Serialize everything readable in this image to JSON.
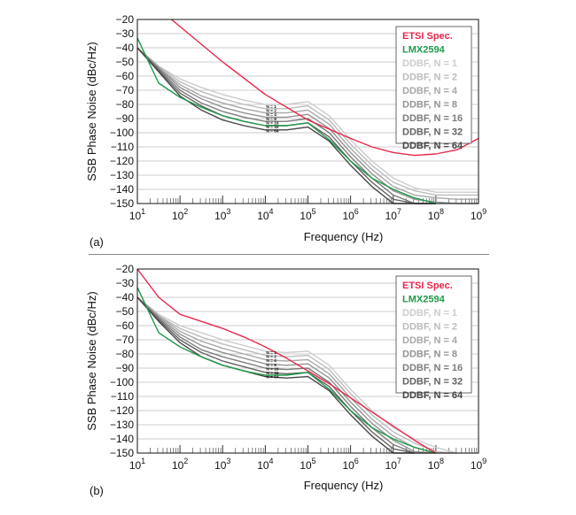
{
  "panels": [
    {
      "label": "(a)"
    },
    {
      "label": "(b)"
    }
  ],
  "colors": {
    "etsi": "#e8274b",
    "lmx": "#1f9a4a",
    "ddbf": [
      "#cccccc",
      "#bcbcbc",
      "#a8a8a8",
      "#939393",
      "#7c7c7c",
      "#626262",
      "#454545"
    ],
    "grid": "#bdbdbd",
    "axis": "#111111"
  },
  "chart_data": [
    {
      "type": "line",
      "panel": "(a)",
      "xlabel": "Frequency (Hz)",
      "ylabel": "SSB Phase Noise (dBc/Hz)",
      "xscale": "log",
      "xlim_exp": [
        1,
        9
      ],
      "ylim": [
        -150,
        -20
      ],
      "yticks": [
        -20,
        -30,
        -40,
        -50,
        -60,
        -70,
        -80,
        -90,
        -100,
        -110,
        -120,
        -130,
        -140,
        -150
      ],
      "grid": "on",
      "legend_position": "top-right",
      "annotation_labels": [
        "N = 1",
        "N = 2",
        "N = 4",
        "N = 8",
        "N = 16",
        "N = 32",
        "N = 64"
      ],
      "series": [
        {
          "name": "ETSI Spec.",
          "color_key": "etsi",
          "x_exp": [
            1.8,
            3,
            4,
            5,
            6,
            6.5,
            7,
            7.5,
            8,
            8.5,
            9
          ],
          "y": [
            -20,
            -50,
            -73,
            -91,
            -104,
            -110,
            -114,
            -116,
            -115,
            -112,
            -104
          ]
        },
        {
          "name": "LMX2594",
          "color_key": "lmx",
          "x_exp": [
            1,
            1.5,
            2,
            2.5,
            3,
            3.5,
            4,
            4.5,
            5,
            5.5,
            6,
            6.5,
            7,
            7.5,
            8
          ],
          "y": [
            -33,
            -65,
            -75,
            -82,
            -88,
            -92,
            -95,
            -95,
            -93,
            -105,
            -120,
            -132,
            -140,
            -146,
            -150
          ]
        },
        {
          "name": "DDBF, N = 1",
          "color_key": "ddbf.0",
          "x_exp": [
            1,
            1.5,
            2,
            2.5,
            3,
            3.5,
            4,
            4.5,
            5,
            5.5,
            6,
            6.5,
            7,
            7.5,
            8,
            8.5,
            9
          ],
          "y": [
            -40,
            -53,
            -62,
            -68,
            -73,
            -77,
            -80,
            -80,
            -78,
            -88,
            -105,
            -120,
            -132,
            -139,
            -142,
            -142,
            -142
          ]
        },
        {
          "name": "DDBF, N = 2",
          "color_key": "ddbf.1",
          "x_exp": [
            1,
            1.5,
            2,
            2.5,
            3,
            3.5,
            4,
            4.5,
            5,
            5.5,
            6,
            6.5,
            7,
            7.5,
            8,
            8.5,
            9
          ],
          "y": [
            -40,
            -53,
            -64,
            -71,
            -76,
            -80,
            -83,
            -83,
            -81,
            -91,
            -108,
            -123,
            -135,
            -141,
            -144,
            -144,
            -144
          ]
        },
        {
          "name": "DDBF, N = 4",
          "color_key": "ddbf.2",
          "x_exp": [
            1,
            1.5,
            2,
            2.5,
            3,
            3.5,
            4,
            4.5,
            5,
            5.5,
            6,
            6.5,
            7,
            7.5,
            8,
            8.5,
            9
          ],
          "y": [
            -40,
            -54,
            -66,
            -74,
            -79,
            -83,
            -86,
            -86,
            -84,
            -94,
            -111,
            -126,
            -138,
            -144,
            -146,
            -147,
            -147
          ]
        },
        {
          "name": "DDBF, N = 8",
          "color_key": "ddbf.3",
          "x_exp": [
            1,
            1.5,
            2,
            2.5,
            3,
            3.5,
            4,
            4.5,
            5,
            5.5,
            6,
            6.5,
            7,
            7.5,
            8,
            8.5,
            9
          ],
          "y": [
            -40,
            -54,
            -68,
            -76,
            -82,
            -86,
            -89,
            -89,
            -87,
            -97,
            -114,
            -129,
            -141,
            -147,
            -149,
            -150,
            -150
          ]
        },
        {
          "name": "DDBF, N = 16",
          "color_key": "ddbf.4",
          "x_exp": [
            1,
            1.5,
            2,
            2.5,
            3,
            3.5,
            4,
            4.5,
            5,
            5.5,
            6,
            6.5,
            7,
            7.5,
            8
          ],
          "y": [
            -40,
            -55,
            -70,
            -79,
            -85,
            -89,
            -92,
            -92,
            -90,
            -100,
            -117,
            -132,
            -144,
            -150,
            -150
          ]
        },
        {
          "name": "DDBF, N = 32",
          "color_key": "ddbf.5",
          "x_exp": [
            1,
            1.5,
            2,
            2.5,
            3,
            3.5,
            4,
            4.5,
            5,
            5.5,
            6,
            6.5,
            7,
            7.5,
            8
          ],
          "y": [
            -40,
            -56,
            -72,
            -81,
            -88,
            -92,
            -95,
            -95,
            -93,
            -103,
            -120,
            -135,
            -147,
            -150,
            -150
          ]
        },
        {
          "name": "DDBF, N = 64",
          "color_key": "ddbf.6",
          "x_exp": [
            1,
            1.5,
            2,
            2.5,
            3,
            3.5,
            4,
            4.5,
            5,
            5.5,
            6,
            6.5,
            7,
            7.5,
            8
          ],
          "y": [
            -40,
            -57,
            -74,
            -84,
            -91,
            -95,
            -98,
            -98,
            -96,
            -106,
            -123,
            -138,
            -150,
            -150,
            -150
          ]
        }
      ]
    },
    {
      "type": "line",
      "panel": "(b)",
      "xlabel": "Frequency (Hz)",
      "ylabel": "SSB Phase Noise (dBc/Hz)",
      "xscale": "log",
      "xlim_exp": [
        1,
        9
      ],
      "ylim": [
        -150,
        -20
      ],
      "yticks": [
        -20,
        -30,
        -40,
        -50,
        -60,
        -70,
        -80,
        -90,
        -100,
        -110,
        -120,
        -130,
        -140,
        -150
      ],
      "grid": "on",
      "legend_position": "top-right",
      "annotation_labels": [
        "N = 1",
        "N = 2",
        "N = 4",
        "N = 8",
        "N = 16",
        "N = 32",
        "N = 64"
      ],
      "series": [
        {
          "name": "ETSI Spec.",
          "color_key": "etsi",
          "x_exp": [
            1,
            1.5,
            2,
            2.5,
            3,
            3.5,
            4,
            4.5,
            5,
            5.5,
            6,
            6.5,
            7,
            7.5,
            8
          ],
          "y": [
            -20,
            -40,
            -52,
            -57,
            -62,
            -68,
            -75,
            -83,
            -92,
            -101,
            -111,
            -121,
            -131,
            -141,
            -150
          ]
        },
        {
          "name": "LMX2594",
          "color_key": "lmx",
          "x_exp": [
            1,
            1.5,
            2,
            2.5,
            3,
            3.5,
            4,
            4.5,
            5,
            5.5,
            6,
            6.5,
            7,
            7.5,
            8
          ],
          "y": [
            -33,
            -65,
            -75,
            -82,
            -88,
            -92,
            -95,
            -95,
            -93,
            -105,
            -120,
            -132,
            -140,
            -146,
            -150
          ]
        },
        {
          "name": "DDBF, N = 1",
          "color_key": "ddbf.0",
          "x_exp": [
            1,
            1.5,
            2,
            2.5,
            3,
            3.5,
            4,
            4.5,
            5,
            5.5,
            6,
            6.5,
            7,
            7.5,
            8,
            8.5,
            9
          ],
          "y": [
            -40,
            -52,
            -60,
            -65,
            -70,
            -74,
            -78,
            -79,
            -78,
            -88,
            -105,
            -120,
            -132,
            -140,
            -146,
            -150,
            -150
          ]
        },
        {
          "name": "DDBF, N = 2",
          "color_key": "ddbf.1",
          "x_exp": [
            1,
            1.5,
            2,
            2.5,
            3,
            3.5,
            4,
            4.5,
            5,
            5.5,
            6,
            6.5,
            7,
            7.5,
            8,
            8.5
          ],
          "y": [
            -40,
            -53,
            -62,
            -68,
            -73,
            -77,
            -81,
            -82,
            -81,
            -91,
            -108,
            -123,
            -135,
            -143,
            -149,
            -150
          ]
        },
        {
          "name": "DDBF, N = 4",
          "color_key": "ddbf.2",
          "x_exp": [
            1,
            1.5,
            2,
            2.5,
            3,
            3.5,
            4,
            4.5,
            5,
            5.5,
            6,
            6.5,
            7,
            7.5,
            8,
            8.5
          ],
          "y": [
            -40,
            -53,
            -64,
            -71,
            -76,
            -80,
            -84,
            -85,
            -84,
            -94,
            -111,
            -126,
            -138,
            -146,
            -150,
            -150
          ]
        },
        {
          "name": "DDBF, N = 8",
          "color_key": "ddbf.3",
          "x_exp": [
            1,
            1.5,
            2,
            2.5,
            3,
            3.5,
            4,
            4.5,
            5,
            5.5,
            6,
            6.5,
            7,
            7.5,
            8
          ],
          "y": [
            -40,
            -54,
            -66,
            -74,
            -79,
            -83,
            -87,
            -88,
            -87,
            -97,
            -114,
            -129,
            -141,
            -149,
            -150
          ]
        },
        {
          "name": "DDBF, N = 16",
          "color_key": "ddbf.4",
          "x_exp": [
            1,
            1.5,
            2,
            2.5,
            3,
            3.5,
            4,
            4.5,
            5,
            5.5,
            6,
            6.5,
            7,
            7.5,
            8
          ],
          "y": [
            -40,
            -55,
            -68,
            -77,
            -82,
            -86,
            -90,
            -91,
            -90,
            -100,
            -117,
            -132,
            -144,
            -150,
            -150
          ]
        },
        {
          "name": "DDBF, N = 32",
          "color_key": "ddbf.5",
          "x_exp": [
            1,
            1.5,
            2,
            2.5,
            3,
            3.5,
            4,
            4.5,
            5,
            5.5,
            6,
            6.5,
            7,
            7.5
          ],
          "y": [
            -40,
            -56,
            -70,
            -79,
            -85,
            -89,
            -93,
            -94,
            -93,
            -103,
            -120,
            -135,
            -147,
            -150
          ]
        },
        {
          "name": "DDBF, N = 64",
          "color_key": "ddbf.6",
          "x_exp": [
            1,
            1.5,
            2,
            2.5,
            3,
            3.5,
            4,
            4.5,
            5,
            5.5,
            6,
            6.5,
            7,
            7.5
          ],
          "y": [
            -40,
            -57,
            -72,
            -82,
            -88,
            -92,
            -96,
            -97,
            -96,
            -106,
            -123,
            -138,
            -150,
            -150
          ]
        }
      ]
    }
  ]
}
